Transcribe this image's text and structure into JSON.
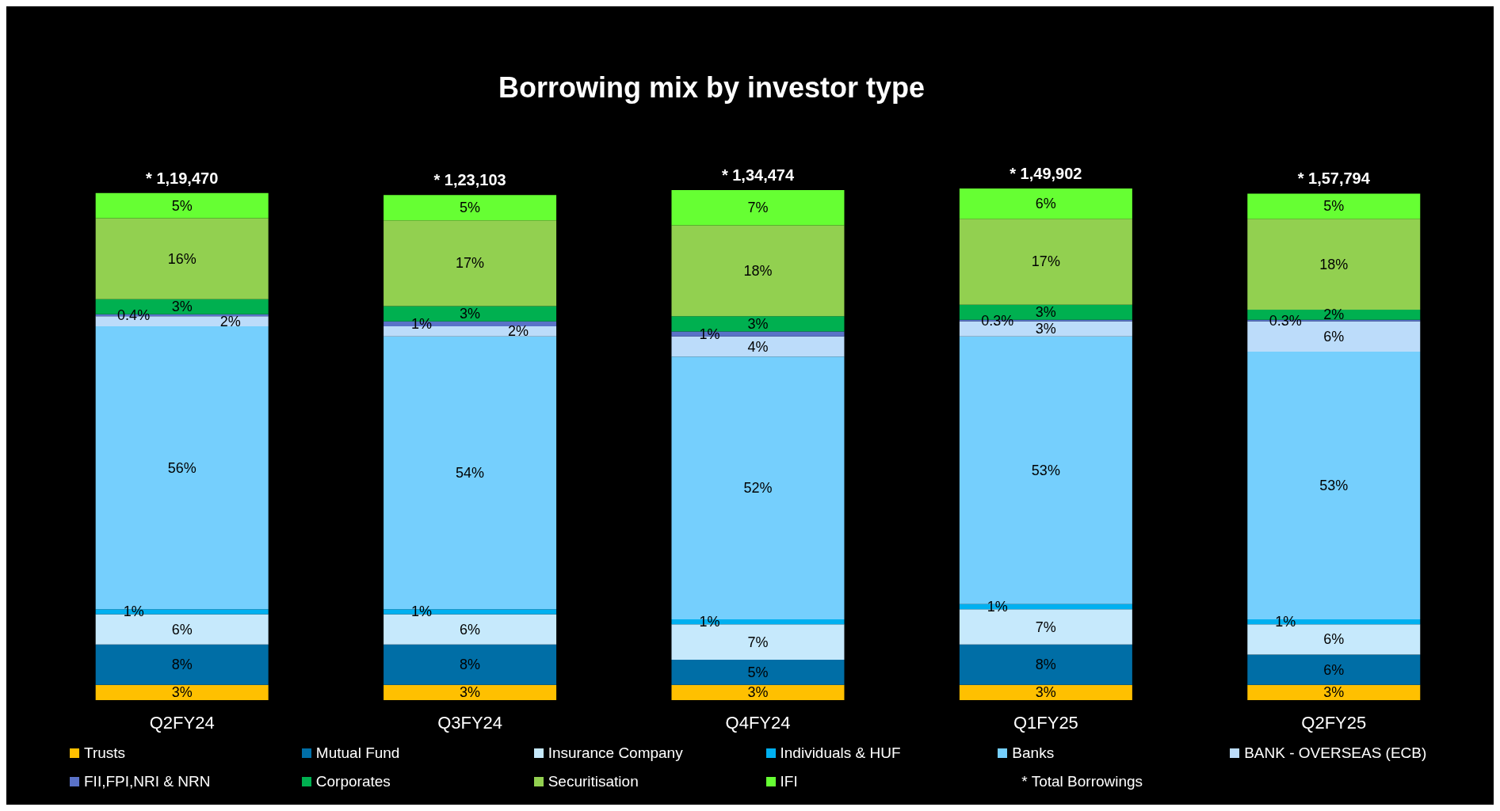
{
  "chart_data": {
    "type": "bar",
    "title": "Borrowing mix by investor type",
    "stacked": true,
    "legend": "bottom",
    "tick_labels": "x",
    "categories": [
      "Q2FY24",
      "Q3FY24",
      "Q4FY24",
      "Q1FY25",
      "Q2FY25"
    ],
    "annotations": [
      "* 1,19,470",
      "* 1,23,103",
      "* 1,34,474",
      "* 1,49,902",
      "* 1,57,794",
      "* Total Borrowings"
    ],
    "series": [
      {
        "name": "Trusts",
        "color": "#ffc000",
        "values": [
          3,
          3,
          3,
          3,
          3
        ],
        "value_labels": [
          "3%",
          "3%",
          "3%",
          "3%",
          "3%"
        ]
      },
      {
        "name": "Mutual Fund",
        "color": "#006ea6",
        "values": [
          8,
          8,
          5,
          8,
          6
        ],
        "value_labels": [
          "8%",
          "8%",
          "5%",
          "8%",
          "6%"
        ]
      },
      {
        "name": "Insurance Company",
        "color": "#c6e9fc",
        "values": [
          6,
          6,
          7,
          7,
          6
        ],
        "value_labels": [
          "6%",
          "6%",
          "7%",
          "7%",
          "6%"
        ]
      },
      {
        "name": "Individuals & HUF",
        "color": "#00b0f0",
        "values": [
          1,
          1,
          1,
          1,
          1
        ],
        "value_labels": [
          "1%",
          "1%",
          "1%",
          "1%",
          "1%"
        ]
      },
      {
        "name": "Banks",
        "color": "#75cffd",
        "values": [
          56,
          54,
          52,
          53,
          53
        ],
        "value_labels": [
          "56%",
          "54%",
          "52%",
          "53%",
          "53%"
        ]
      },
      {
        "name": "BANK - OVERSEAS (ECB)",
        "color": "#bcdcfa",
        "values": [
          2,
          2,
          4,
          3,
          6
        ],
        "value_labels": [
          "2%",
          "2%",
          "4%",
          "3%",
          "6%"
        ]
      },
      {
        "name": "FII,FPI,NRI & NRN",
        "color": "#5a72c8",
        "values": [
          0.4,
          1,
          1,
          0.3,
          0.3
        ],
        "value_labels": [
          "0.4%",
          "1%",
          "1%",
          "0.3%",
          "0.3%"
        ]
      },
      {
        "name": "Corporates",
        "color": "#00b050",
        "values": [
          3,
          3,
          3,
          3,
          2
        ],
        "value_labels": [
          "3%",
          "3%",
          "3%",
          "3%",
          "2%"
        ]
      },
      {
        "name": "Securitisation",
        "color": "#92d050",
        "values": [
          16,
          17,
          18,
          17,
          18
        ],
        "value_labels": [
          "16%",
          "17%",
          "18%",
          "17%",
          "18%"
        ]
      },
      {
        "name": "IFI",
        "color": "#66ff33",
        "values": [
          5,
          5,
          7,
          6,
          5
        ],
        "value_labels": [
          "5%",
          "5%",
          "7%",
          "6%",
          "5%"
        ]
      }
    ]
  }
}
